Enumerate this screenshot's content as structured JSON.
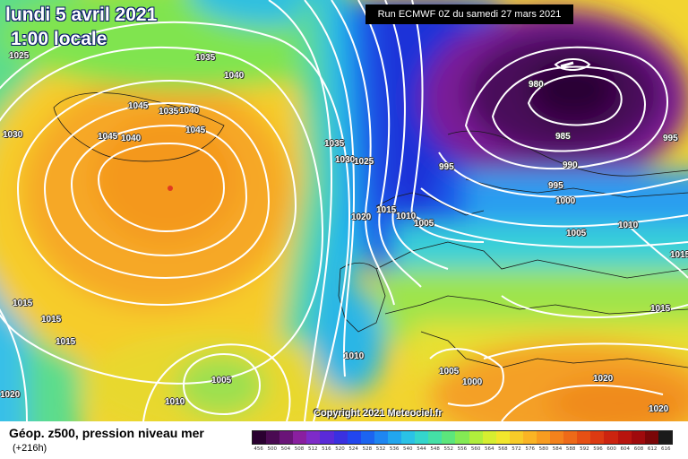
{
  "title": {
    "date": "lundi 5 avril 2021",
    "time": "1:00 locale",
    "run": "Run ECMWF 0Z du samedi 27 mars 2021",
    "copyright": "Copyright 2021 Meteociel.fr"
  },
  "footer": {
    "title": "Géop. z500, pression niveau mer",
    "subtitle": "(+216h)"
  },
  "isobar_labels": [
    {
      "id": "p1",
      "text": "1025"
    },
    {
      "id": "p2",
      "text": "1035"
    },
    {
      "id": "p3",
      "text": "1040"
    },
    {
      "id": "p4",
      "text": "1030"
    },
    {
      "id": "p5",
      "text": "1045"
    },
    {
      "id": "p6",
      "text": "1035"
    },
    {
      "id": "p7",
      "text": "1040"
    },
    {
      "id": "p8",
      "text": "1045"
    },
    {
      "id": "p9",
      "text": "1045"
    },
    {
      "id": "p10",
      "text": "1040"
    },
    {
      "id": "p11",
      "text": "1035"
    },
    {
      "id": "p12",
      "text": "1030"
    },
    {
      "id": "p13",
      "text": "1025"
    },
    {
      "id": "p14",
      "text": "1020"
    },
    {
      "id": "p15",
      "text": "1015"
    },
    {
      "id": "p16",
      "text": "1010"
    },
    {
      "id": "p17",
      "text": "1005"
    },
    {
      "id": "p18",
      "text": "995"
    },
    {
      "id": "p19",
      "text": "980"
    },
    {
      "id": "p20",
      "text": "985"
    },
    {
      "id": "p21",
      "text": "990"
    },
    {
      "id": "p22",
      "text": "995"
    },
    {
      "id": "p23",
      "text": "995"
    },
    {
      "id": "p24",
      "text": "1000"
    },
    {
      "id": "p25",
      "text": "1010"
    },
    {
      "id": "p26",
      "text": "1005"
    },
    {
      "id": "p27",
      "text": "1015"
    },
    {
      "id": "p28",
      "text": "1015"
    },
    {
      "id": "p29",
      "text": "1015"
    },
    {
      "id": "p30",
      "text": "1015"
    },
    {
      "id": "p31",
      "text": "1015"
    },
    {
      "id": "p32",
      "text": "1010"
    },
    {
      "id": "p33",
      "text": "1005"
    },
    {
      "id": "p34",
      "text": "1000"
    },
    {
      "id": "p35",
      "text": "1020"
    },
    {
      "id": "p36",
      "text": "1020"
    },
    {
      "id": "p37",
      "text": "1005"
    },
    {
      "id": "p38",
      "text": "1010"
    },
    {
      "id": "p39",
      "text": "1020"
    }
  ],
  "legend": {
    "ticks": [
      "456",
      "500",
      "504",
      "508",
      "512",
      "516",
      "520",
      "524",
      "528",
      "532",
      "536",
      "540",
      "544",
      "548",
      "552",
      "556",
      "560",
      "564",
      "568",
      "572",
      "576",
      "580",
      "584",
      "588",
      "592",
      "596",
      "600",
      "604",
      "608",
      "612",
      "616"
    ],
    "colors": [
      "#2a0030",
      "#4a0a52",
      "#6a1478",
      "#8a1fa0",
      "#7e2bc8",
      "#5a2ad8",
      "#3a30e0",
      "#2246ee",
      "#1c64f0",
      "#1e86f2",
      "#22a6ee",
      "#2ac2e6",
      "#34d6cc",
      "#44e0a6",
      "#5ce67c",
      "#84ea54",
      "#b0ee3c",
      "#d6ee30",
      "#f2e62c",
      "#f8cc28",
      "#fab424",
      "#f89c20",
      "#f4821c",
      "#ee6a18",
      "#e65014",
      "#dc3a12",
      "#cc2410",
      "#b8140e",
      "#a00a0c",
      "#7a0608",
      "#1a1a1a"
    ]
  }
}
